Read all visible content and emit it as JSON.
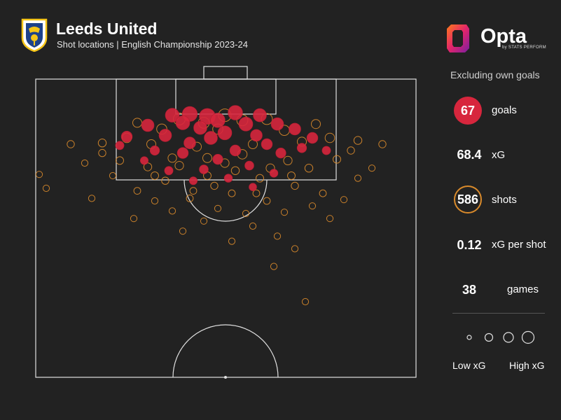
{
  "header": {
    "title": "Leeds United",
    "subtitle": "Shot locations | English Championship 2023-24"
  },
  "brand": {
    "name": "Opta",
    "tagline": "by STATS PERFORM"
  },
  "colors": {
    "background": "#222222",
    "goal": "#d7263d",
    "shot": "#d98a2b",
    "lines": "#e0e0e0"
  },
  "stats": {
    "note": "Excluding own goals",
    "goals": {
      "value": "67",
      "label": "goals"
    },
    "xg": {
      "value": "68.4",
      "label": "xG"
    },
    "shots": {
      "value": "586",
      "label": "shots"
    },
    "xg_per_shot": {
      "value": "0.12",
      "label": "xG per shot"
    },
    "games": {
      "value": "38",
      "label": "games"
    }
  },
  "legend": {
    "low": "Low xG",
    "high": "High xG"
  },
  "chart_data": {
    "type": "scatter",
    "title": "Leeds United",
    "subtitle": "Shot locations | English Championship 2023-24",
    "series": [
      {
        "name": "goals",
        "color": "#d7263d",
        "points": [
          [
            45,
            23,
            0.6
          ],
          [
            40,
            21,
            0.5
          ],
          [
            53,
            20,
            0.45
          ],
          [
            35,
            22,
            0.4
          ],
          [
            60,
            22,
            0.35
          ],
          [
            48,
            26,
            0.45
          ],
          [
            38,
            28,
            0.4
          ],
          [
            56,
            29,
            0.4
          ],
          [
            43,
            32,
            0.35
          ],
          [
            65,
            29,
            0.3
          ],
          [
            28,
            30,
            0.3
          ],
          [
            50,
            36,
            0.4
          ],
          [
            70,
            33,
            0.25
          ],
          [
            33,
            38,
            0.3
          ],
          [
            59,
            38,
            0.25
          ],
          [
            46,
            40,
            0.35
          ],
          [
            40,
            44,
            0.25
          ],
          [
            62,
            45,
            0.2
          ],
          [
            75,
            40,
            0.2
          ],
          [
            22,
            39,
            0.2
          ],
          [
            53,
            50,
            0.2
          ],
          [
            38,
            52,
            0.2
          ],
          [
            66,
            52,
            0.15
          ],
          [
            48,
            57,
            0.15
          ],
          [
            30,
            50,
            0.12
          ],
          [
            72,
            48,
            0.12
          ],
          [
            57,
            62,
            0.1
          ],
          [
            44,
            65,
            0.1
          ],
          [
            34,
            66,
            0.08
          ],
          [
            79,
            50,
            0.08
          ],
          [
            20,
            46,
            0.08
          ],
          [
            51,
            72,
            0.07
          ],
          [
            64,
            68,
            0.07
          ],
          [
            41,
            74,
            0.06
          ],
          [
            27,
            58,
            0.06
          ],
          [
            58,
            79,
            0.05
          ]
        ]
      },
      {
        "name": "shots",
        "color": "#d98a2b",
        "points": [
          [
            50,
            22,
            0.3
          ],
          [
            37,
            25,
            0.25
          ],
          [
            62,
            25,
            0.2
          ],
          [
            44,
            28,
            0.2
          ],
          [
            55,
            26,
            0.2
          ],
          [
            32,
            33,
            0.15
          ],
          [
            67,
            34,
            0.15
          ],
          [
            48,
            33,
            0.15
          ],
          [
            25,
            28,
            0.1
          ],
          [
            76,
            29,
            0.1
          ],
          [
            58,
            45,
            0.1
          ],
          [
            42,
            47,
            0.1
          ],
          [
            35,
            56,
            0.08
          ],
          [
            68,
            58,
            0.08
          ],
          [
            50,
            60,
            0.08
          ],
          [
            28,
            63,
            0.06
          ],
          [
            74,
            64,
            0.06
          ],
          [
            20,
            58,
            0.05
          ],
          [
            82,
            57,
            0.05
          ],
          [
            45,
            70,
            0.05
          ],
          [
            60,
            72,
            0.05
          ],
          [
            15,
            52,
            0.04
          ],
          [
            86,
            50,
            0.04
          ],
          [
            33,
            74,
            0.04
          ],
          [
            70,
            78,
            0.04
          ],
          [
            52,
            84,
            0.03
          ],
          [
            40,
            88,
            0.03
          ],
          [
            62,
            90,
            0.03
          ],
          [
            25,
            82,
            0.03
          ],
          [
            78,
            84,
            0.03
          ],
          [
            18,
            70,
            0.02
          ],
          [
            88,
            72,
            0.02
          ],
          [
            48,
            96,
            0.02
          ],
          [
            56,
            100,
            0.02
          ],
          [
            35,
            98,
            0.02
          ],
          [
            67,
            99,
            0.02
          ],
          [
            30,
            90,
            0.02
          ],
          [
            75,
            94,
            0.02
          ],
          [
            10,
            60,
            0.02
          ],
          [
            92,
            64,
            0.02
          ],
          [
            44,
            106,
            0.02
          ],
          [
            58,
            110,
            0.02
          ],
          [
            65,
            118,
            0.02
          ],
          [
            38,
            114,
            0.02
          ],
          [
            52,
            122,
            0.02
          ],
          [
            70,
            128,
            0.02
          ],
          [
            -3,
            69,
            0.02
          ],
          [
            -1,
            80,
            0.02
          ],
          [
            64,
            142,
            0.02
          ],
          [
            73,
            170,
            0.02
          ],
          [
            84,
            89,
            0.02
          ],
          [
            12,
            88,
            0.02
          ],
          [
            24,
            104,
            0.02
          ],
          [
            80,
            104,
            0.02
          ],
          [
            22,
            40,
            0.12
          ],
          [
            80,
            40,
            0.12
          ],
          [
            15,
            44,
            0.06
          ],
          [
            88,
            42,
            0.06
          ],
          [
            6,
            45,
            0.04
          ],
          [
            95,
            45,
            0.04
          ],
          [
            29,
            45,
            0.1
          ],
          [
            72,
            43,
            0.1
          ],
          [
            55,
            53,
            0.12
          ],
          [
            45,
            56,
            0.1
          ],
          [
            37,
            62,
            0.08
          ],
          [
            63,
            64,
            0.08
          ],
          [
            30,
            70,
            0.05
          ],
          [
            69,
            70,
            0.05
          ],
          [
            53,
            66,
            0.06
          ],
          [
            47,
            78,
            0.04
          ],
          [
            59,
            84,
            0.03
          ],
          [
            41,
            82,
            0.03
          ]
        ]
      }
    ],
    "x_axis": "pitch width, 0-100 (left to right)",
    "y_axis": "distance from attacking goal line, 0-170",
    "grid": false,
    "legend_position": "bottom-right"
  }
}
